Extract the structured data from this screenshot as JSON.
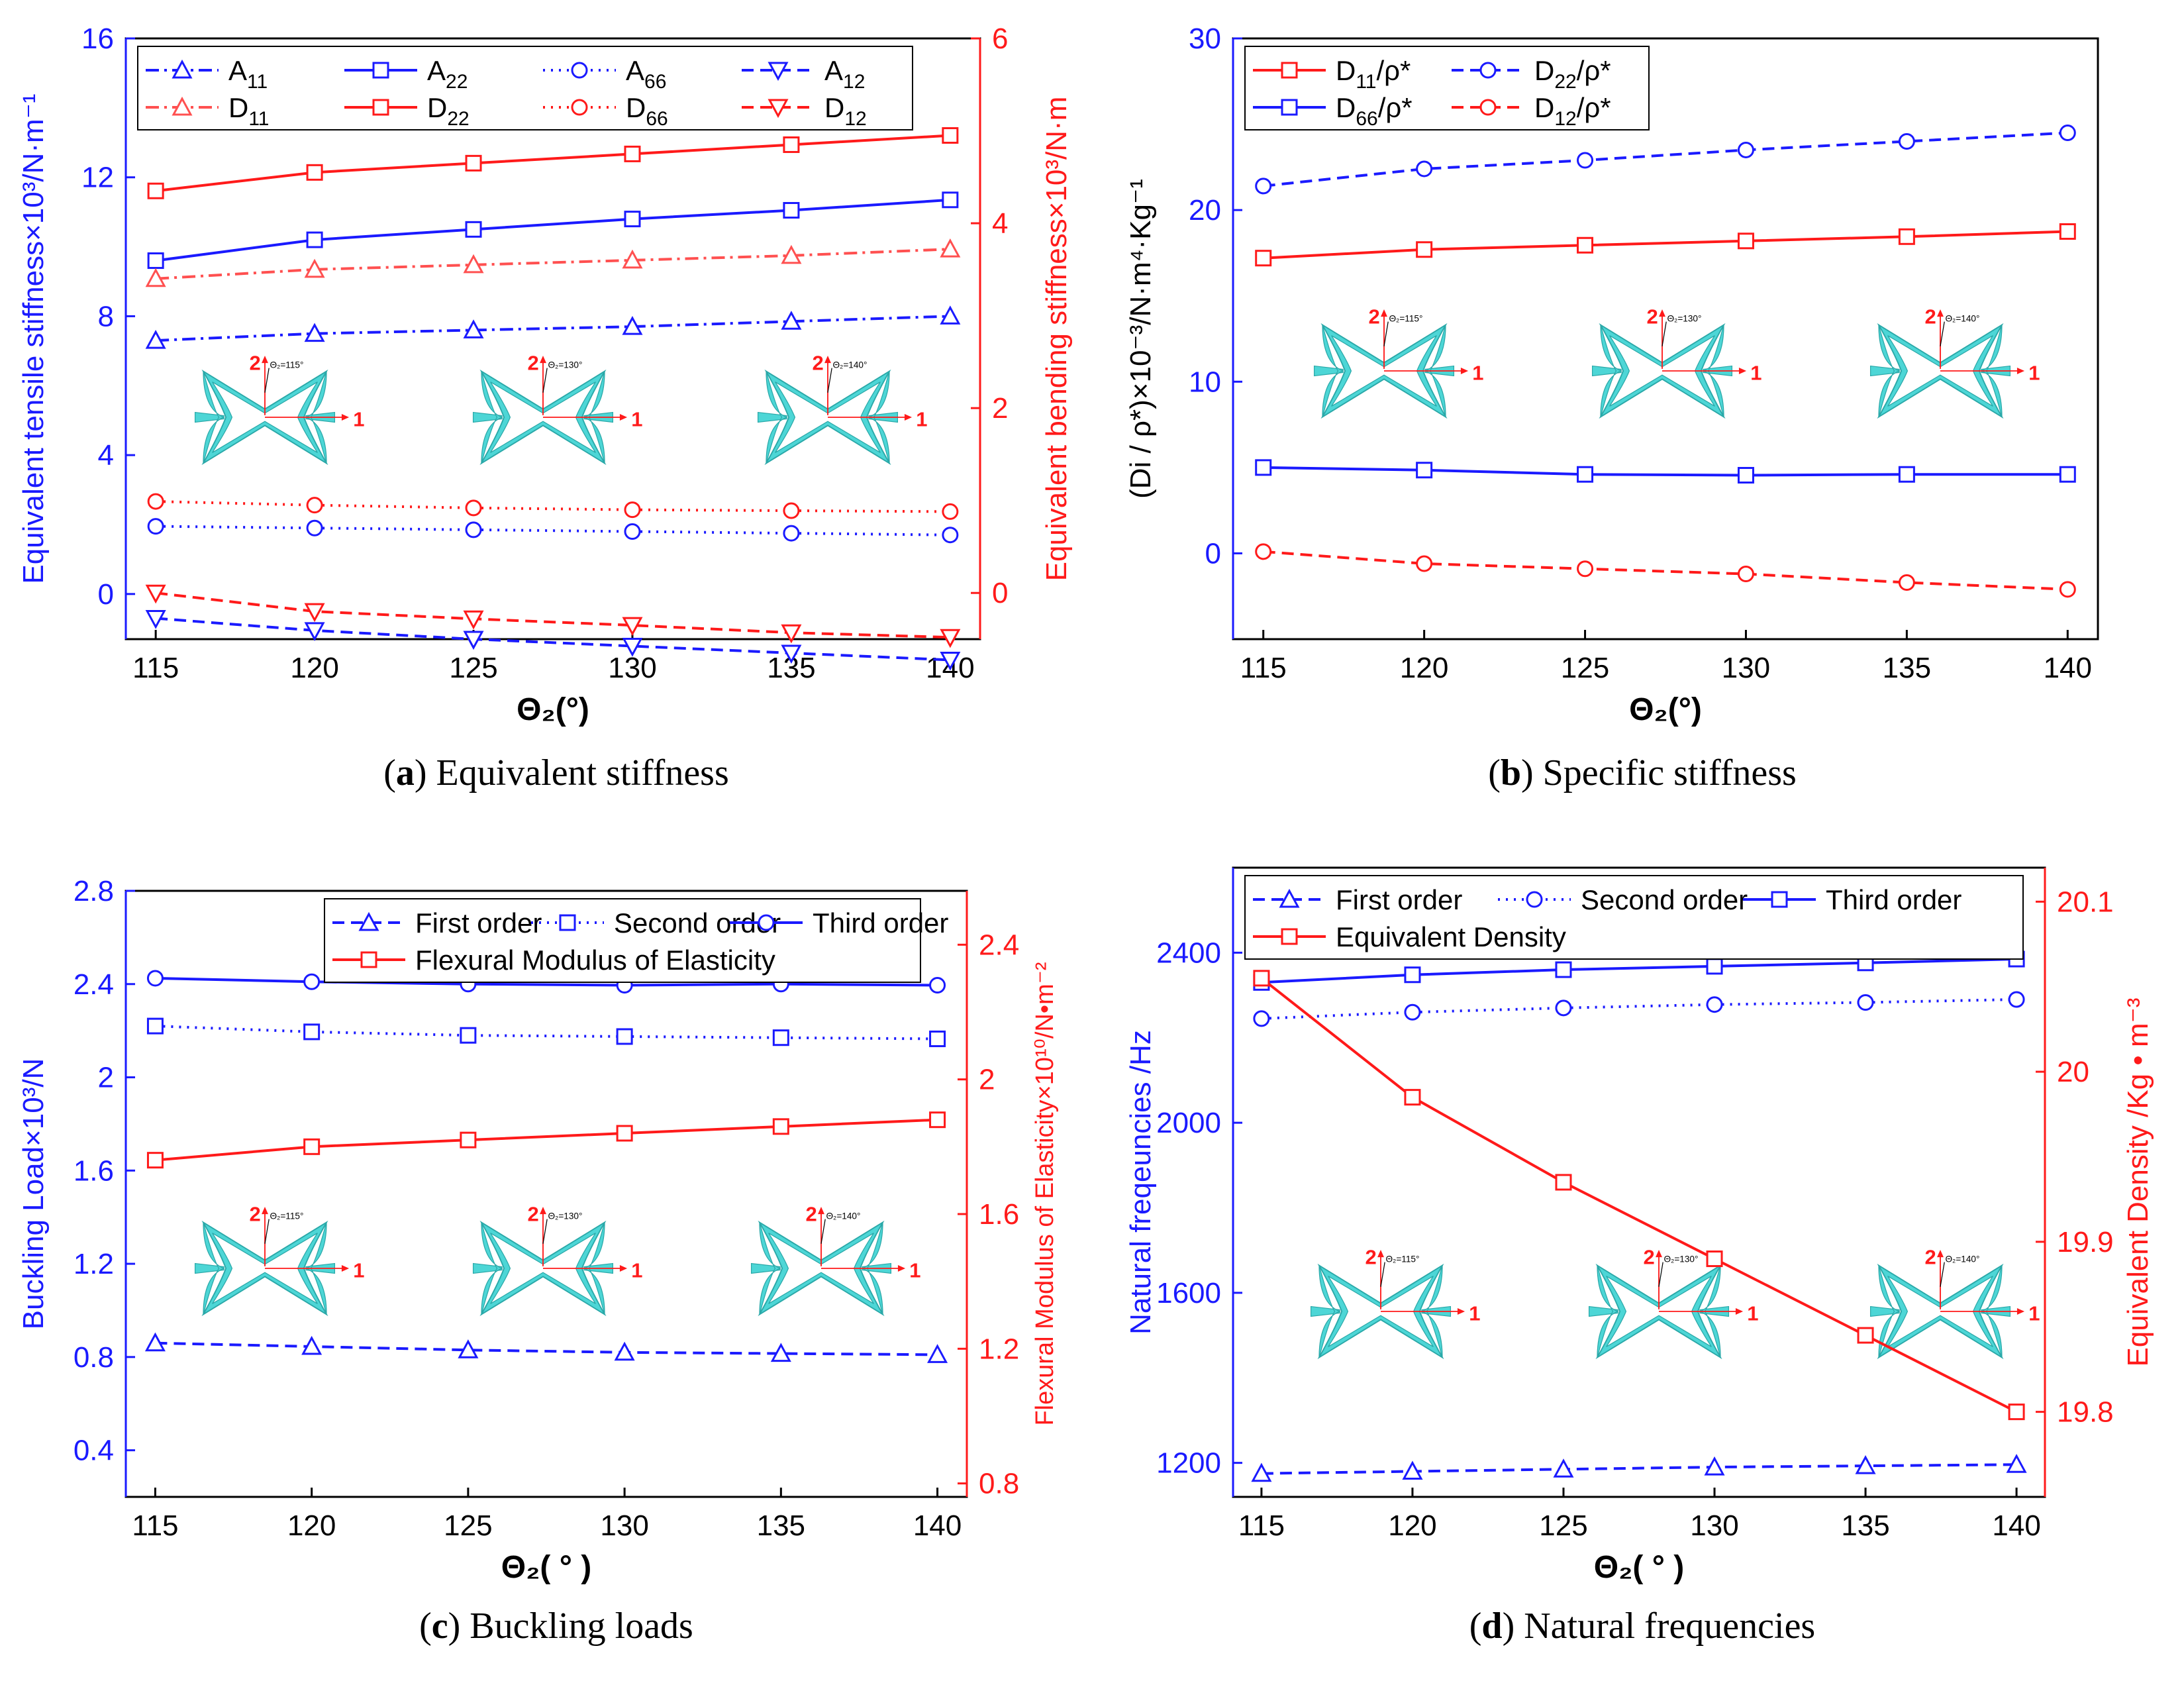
{
  "x_ticks": [
    "115",
    "120",
    "125",
    "130",
    "135",
    "140"
  ],
  "inset_angles": [
    "Θ₂=115°",
    "Θ₂=130°",
    "Θ₂=140°"
  ],
  "inset_axis_labels": {
    "x": "1",
    "y": "2"
  },
  "colors": {
    "blue": "#1a1aff",
    "red": "#ff1a1a",
    "light_red": "#ff5050",
    "cyan": "#4dd6d6",
    "cyan_edge": "#2aa8a8"
  },
  "icons": [
    "cell-icon"
  ],
  "chart_data": [
    {
      "id": "a",
      "type": "line",
      "caption_letter": "a",
      "caption_text": "Equivalent stiffness",
      "xlabel": "Θ₂(°)",
      "ylabel_left": "Equivalent tensile stiffness×10³/N·m⁻¹",
      "ylabel_right": "Equivalent bending stiffness×10³/N·m",
      "x": [
        115,
        120,
        125,
        130,
        135,
        140
      ],
      "y_left_lim": [
        -1.3,
        16
      ],
      "y_left_ticks": [
        0,
        4,
        8,
        12,
        16
      ],
      "y_right_lim": [
        -0.5,
        6
      ],
      "y_right_ticks": [
        0,
        2,
        4,
        6
      ],
      "legend_rows": 2,
      "legend_cols": 4,
      "legend_position": "top",
      "series": [
        {
          "name": "A11",
          "name_main": "A",
          "name_sub": "11",
          "axis": "left",
          "color": "#1a1aff",
          "dash": "dashdot",
          "marker": "triangle-up",
          "values": [
            7.3,
            7.5,
            7.6,
            7.7,
            7.85,
            8.0
          ]
        },
        {
          "name": "A22",
          "name_main": "A",
          "name_sub": "22",
          "axis": "left",
          "color": "#1a1aff",
          "dash": "solid",
          "marker": "square",
          "values": [
            9.6,
            10.2,
            10.5,
            10.8,
            11.05,
            11.35
          ]
        },
        {
          "name": "A66",
          "name_main": "A",
          "name_sub": "66",
          "axis": "left",
          "color": "#1a1aff",
          "dash": "dot",
          "marker": "circle",
          "values": [
            1.95,
            1.9,
            1.85,
            1.8,
            1.75,
            1.7
          ]
        },
        {
          "name": "A12",
          "name_main": "A",
          "name_sub": "12",
          "axis": "left",
          "color": "#1a1aff",
          "dash": "dash",
          "marker": "triangle-down",
          "values": [
            -0.7,
            -1.05,
            -1.3,
            -1.5,
            -1.7,
            -1.9
          ]
        },
        {
          "name": "D11",
          "name_main": "D",
          "name_sub": "11",
          "axis": "right",
          "color": "#ff5050",
          "dash": "dashdot",
          "marker": "triangle-up",
          "values": [
            3.4,
            3.5,
            3.55,
            3.6,
            3.65,
            3.72
          ]
        },
        {
          "name": "D22",
          "name_main": "D",
          "name_sub": "22",
          "axis": "right",
          "color": "#ff1a1a",
          "dash": "solid",
          "marker": "square",
          "values": [
            4.35,
            4.55,
            4.65,
            4.75,
            4.85,
            4.95
          ]
        },
        {
          "name": "D66",
          "name_main": "D",
          "name_sub": "66",
          "axis": "right",
          "color": "#ff1a1a",
          "dash": "dot",
          "marker": "circle",
          "values": [
            0.99,
            0.95,
            0.92,
            0.9,
            0.89,
            0.88
          ]
        },
        {
          "name": "D12",
          "name_main": "D",
          "name_sub": "12",
          "axis": "right",
          "color": "#ff1a1a",
          "dash": "dash",
          "marker": "triangle-down",
          "values": [
            0.0,
            -0.2,
            -0.28,
            -0.35,
            -0.43,
            -0.48
          ]
        }
      ]
    },
    {
      "id": "b",
      "type": "line",
      "caption_letter": "b",
      "caption_text": "Specific stiffness",
      "xlabel": "Θ₂(°)",
      "ylabel_left": "(Di / ρ*)×10⁻³/N·m⁴·Kg⁻¹",
      "x": [
        115,
        120,
        125,
        130,
        135,
        140
      ],
      "y_left_lim": [
        -5,
        30
      ],
      "y_left_ticks": [
        0,
        10,
        20,
        30
      ],
      "legend_rows": 2,
      "legend_cols": 2,
      "legend_position": "top-left",
      "series": [
        {
          "name": "D11/ρ*",
          "name_main": "D",
          "name_sub": "11",
          "name_tail": "/ρ*",
          "axis": "left",
          "color": "#ff1a1a",
          "dash": "solid",
          "marker": "square",
          "values": [
            17.2,
            17.7,
            17.95,
            18.2,
            18.45,
            18.75
          ]
        },
        {
          "name": "D22/ρ*",
          "name_main": "D",
          "name_sub": "22",
          "name_tail": "/ρ*",
          "axis": "left",
          "color": "#1a1aff",
          "dash": "dash",
          "marker": "circle",
          "values": [
            21.4,
            22.4,
            22.9,
            23.5,
            24.0,
            24.5
          ]
        },
        {
          "name": "D66/ρ*",
          "name_main": "D",
          "name_sub": "66",
          "name_tail": "/ρ*",
          "axis": "left",
          "color": "#1a1aff",
          "dash": "solid",
          "marker": "square",
          "values": [
            5.0,
            4.85,
            4.6,
            4.55,
            4.6,
            4.6
          ]
        },
        {
          "name": "D12/ρ*",
          "name_main": "D",
          "name_sub": "12",
          "name_tail": "/ρ*",
          "axis": "left",
          "color": "#ff1a1a",
          "dash": "dash",
          "marker": "circle",
          "values": [
            0.1,
            -0.6,
            -0.9,
            -1.2,
            -1.7,
            -2.1
          ]
        }
      ]
    },
    {
      "id": "c",
      "type": "line",
      "caption_letter": "c",
      "caption_text": "Buckling loads",
      "xlabel": "Θ₂( ° )",
      "ylabel_left": "Buckling Load×10³/N",
      "ylabel_right": "Flexural Modulus of Elasticity×10¹⁰/N•m⁻²",
      "x": [
        115,
        120,
        125,
        130,
        135,
        140
      ],
      "y_left_lim": [
        0.2,
        2.8
      ],
      "y_left_ticks": [
        0.4,
        0.8,
        1.2,
        1.6,
        2.0,
        2.4,
        2.8
      ],
      "y_right_lim": [
        0.76,
        2.56
      ],
      "y_right_ticks": [
        0.8,
        1.2,
        1.6,
        2.0,
        2.4
      ],
      "legend_rows": 2,
      "legend_cols": 3,
      "legend_position": "top-right",
      "series": [
        {
          "name": "First order",
          "axis": "left",
          "color": "#1a1aff",
          "dash": "dash",
          "marker": "triangle-up",
          "values": [
            0.86,
            0.845,
            0.83,
            0.82,
            0.815,
            0.81
          ]
        },
        {
          "name": "Second order",
          "axis": "left",
          "color": "#1a1aff",
          "dash": "dot",
          "marker": "square",
          "values": [
            2.22,
            2.195,
            2.18,
            2.175,
            2.17,
            2.165
          ]
        },
        {
          "name": "Third order",
          "axis": "left",
          "color": "#1a1aff",
          "dash": "solid",
          "marker": "circle",
          "values": [
            2.425,
            2.41,
            2.4,
            2.395,
            2.4,
            2.395
          ]
        },
        {
          "name": "Flexural Modulus of Elasticity",
          "axis": "right",
          "color": "#ff1a1a",
          "dash": "solid",
          "marker": "square",
          "values": [
            1.76,
            1.8,
            1.82,
            1.84,
            1.86,
            1.88
          ]
        }
      ]
    },
    {
      "id": "d",
      "type": "line",
      "caption_letter": "d",
      "caption_text": "Natural frequencies",
      "xlabel": "Θ₂( ° )",
      "ylabel_left": "Natural freqeuncies /Hz",
      "ylabel_right": "Equivalent Density /Kg • m⁻³",
      "x": [
        115,
        120,
        125,
        130,
        135,
        140
      ],
      "y_left_lim": [
        1120,
        2600
      ],
      "y_left_ticks": [
        1200,
        1600,
        2000,
        2400
      ],
      "y_right_lim": [
        19.75,
        20.12
      ],
      "y_right_ticks": [
        19.8,
        19.9,
        20.0,
        20.1
      ],
      "legend_rows": 2,
      "legend_cols": 3,
      "legend_position": "top",
      "series": [
        {
          "name": "First order",
          "axis": "left",
          "color": "#1a1aff",
          "dash": "dash",
          "marker": "triangle-up",
          "values": [
            1175,
            1180,
            1185,
            1190,
            1193,
            1196
          ]
        },
        {
          "name": "Second order",
          "axis": "left",
          "color": "#1a1aff",
          "dash": "dot",
          "marker": "circle",
          "values": [
            2245,
            2260,
            2270,
            2278,
            2283,
            2290
          ]
        },
        {
          "name": "Third order",
          "axis": "left",
          "color": "#1a1aff",
          "dash": "solid",
          "marker": "square",
          "values": [
            2330,
            2348,
            2360,
            2368,
            2376,
            2385
          ]
        },
        {
          "name": "Equivalent Density",
          "axis": "right",
          "color": "#ff1a1a",
          "dash": "solid",
          "marker": "square",
          "values": [
            20.055,
            19.985,
            19.935,
            19.89,
            19.845,
            19.8
          ]
        }
      ]
    }
  ]
}
